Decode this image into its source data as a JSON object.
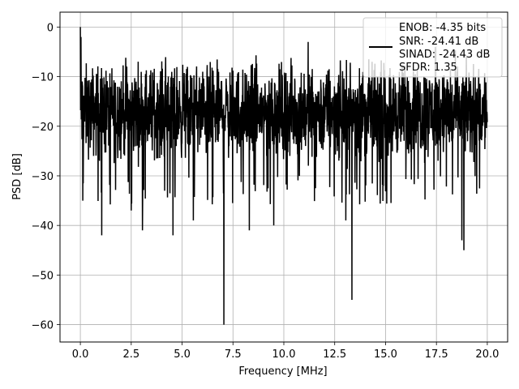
{
  "chart_data": {
    "type": "line",
    "xlabel": "Frequency [MHz]",
    "ylabel": "PSD [dB]",
    "xlim": [
      -1.0,
      21.0
    ],
    "ylim": [
      -63.5,
      3.0
    ],
    "x_ticks": [
      0.0,
      2.5,
      5.0,
      7.5,
      10.0,
      12.5,
      15.0,
      17.5,
      20.0
    ],
    "x_tick_labels": [
      "0.0",
      "2.5",
      "5.0",
      "7.5",
      "10.0",
      "12.5",
      "15.0",
      "17.5",
      "20.0"
    ],
    "y_ticks": [
      0,
      -10,
      -20,
      -30,
      -40,
      -50,
      -60
    ],
    "y_tick_labels": [
      "0",
      "−10",
      "−20",
      "−30",
      "−40",
      "−50",
      "−60"
    ],
    "grid": true,
    "series": [
      {
        "color": "#000000",
        "x_range": [
          0.0,
          20.0
        ],
        "points": 2000,
        "mean_db": -17,
        "band_db": [
          -30,
          -4
        ],
        "spikes": [
          {
            "x": 0.0,
            "y": 0
          },
          {
            "x": 0.03,
            "y": -2
          },
          {
            "x": 0.12,
            "y": -35
          },
          {
            "x": 1.05,
            "y": -42
          },
          {
            "x": 2.5,
            "y": -37
          },
          {
            "x": 3.05,
            "y": -41
          },
          {
            "x": 4.55,
            "y": -42
          },
          {
            "x": 5.55,
            "y": -39
          },
          {
            "x": 7.05,
            "y": -60
          },
          {
            "x": 8.3,
            "y": -41
          },
          {
            "x": 9.5,
            "y": -40
          },
          {
            "x": 11.2,
            "y": -3
          },
          {
            "x": 13.05,
            "y": -39
          },
          {
            "x": 13.35,
            "y": -55
          },
          {
            "x": 17.45,
            "y": -4
          },
          {
            "x": 18.85,
            "y": -45
          },
          {
            "x": 18.75,
            "y": -43
          }
        ]
      }
    ],
    "legend": {
      "position": "top-right",
      "lines": [
        "ENOB: -4.35 bits",
        "SNR: -24.41 dB",
        "SINAD: -24.43 dB",
        "SFDR: 1.35"
      ]
    }
  }
}
